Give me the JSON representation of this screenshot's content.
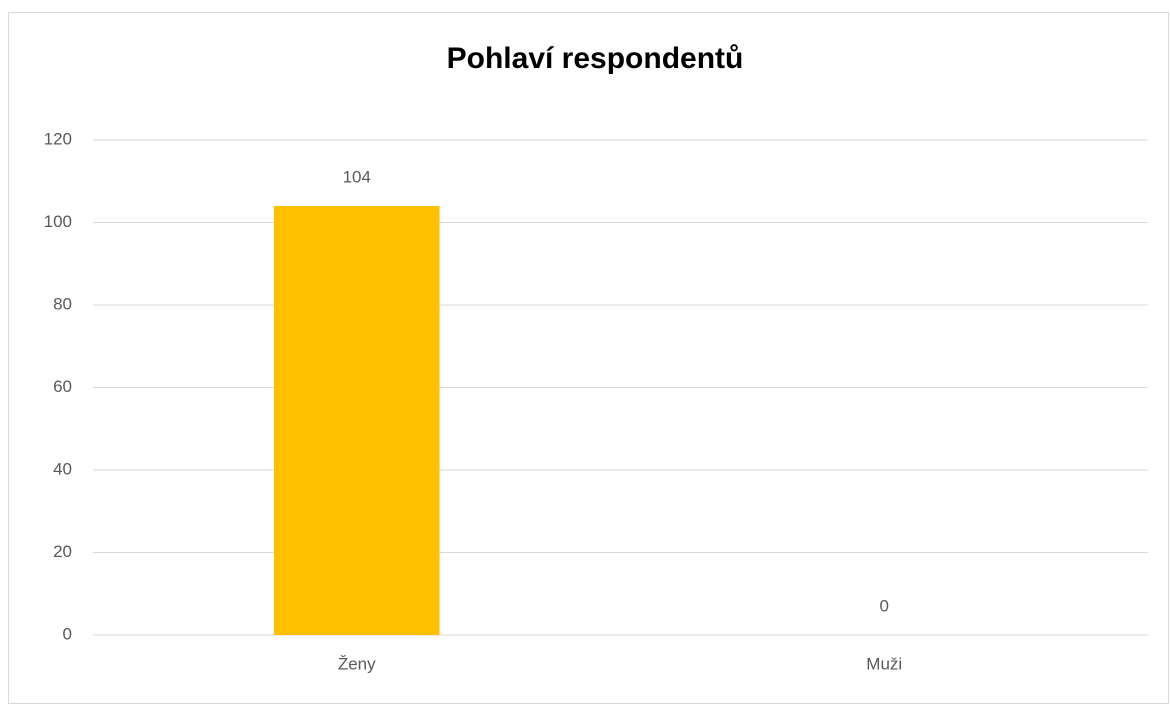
{
  "chart_data": {
    "type": "bar",
    "title": "Pohlaví respondentů",
    "categories": [
      "Ženy",
      "Muži"
    ],
    "values": [
      104,
      0
    ],
    "color": "#ffc000",
    "ylim": [
      0,
      120
    ],
    "yticks": [
      0,
      20,
      40,
      60,
      80,
      100,
      120
    ],
    "grid": true
  }
}
